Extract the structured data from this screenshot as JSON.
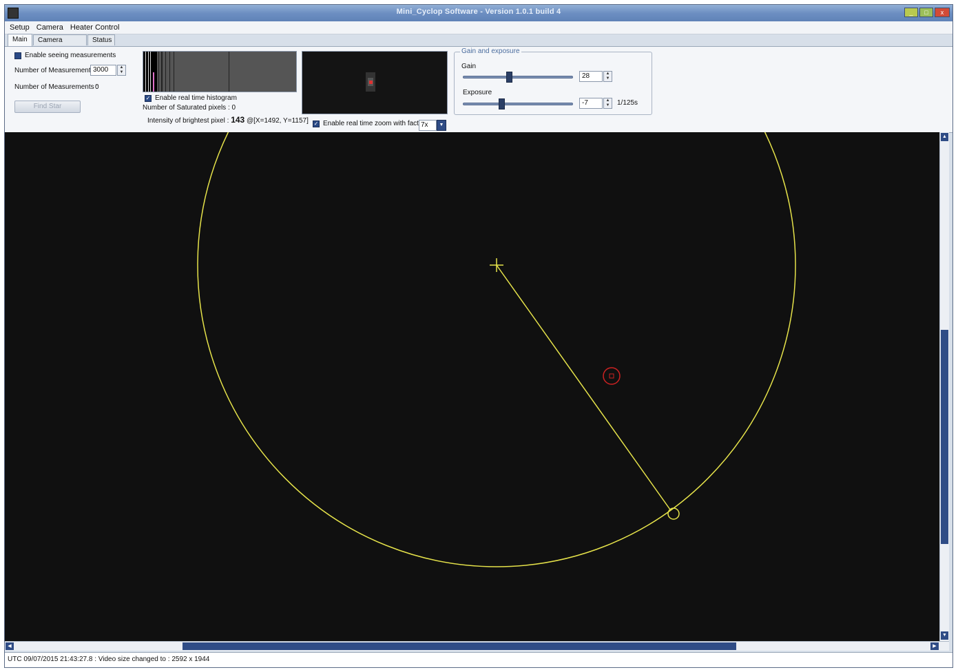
{
  "window": {
    "title": "Mini_Cyclop Software - Version 1.0.1 build 4",
    "minimize": "_",
    "maximize": "□",
    "close": "x"
  },
  "menu": [
    "Setup",
    "Camera",
    "Heater Control"
  ],
  "tabs": [
    {
      "label": "Main",
      "active": true
    },
    {
      "label": "Camera controls",
      "active": false
    },
    {
      "label": "Status",
      "active": false
    }
  ],
  "main": {
    "enable_seeing_label": "Enable seeing measurements",
    "num_measurements_label": "Number of Measurements",
    "num_measurements_value": "3000",
    "num_measurements_count_label": "Number of Measurements :",
    "num_measurements_count_value": "0",
    "find_star_label": "Find Star",
    "enable_histogram_label": "Enable real time histogram",
    "saturated_label": "Number of Saturated pixels : 0",
    "brightest_label": "Intensity of brightest pixel :",
    "brightest_value": "143",
    "brightest_position": "@[X=1492, Y=1157]",
    "enable_zoom_label": "Enable real time zoom with factor",
    "zoom_factor": "7x"
  },
  "gain_exposure": {
    "group_title": "Gain and exposure",
    "gain_label": "Gain",
    "gain_value": "28",
    "gain_level": 0.42,
    "exposure_label": "Exposure",
    "exposure_value": "-7",
    "exposure_level": 0.35,
    "exposure_unit": "1/125s"
  },
  "status": {
    "message": "UTC 09/07/2015 21:43:27.8 : Video size changed to :  2592 x 1944"
  },
  "colors": {
    "overlay": "#e6e34a",
    "target": "#cc2222",
    "accent": "#2f4c86"
  }
}
